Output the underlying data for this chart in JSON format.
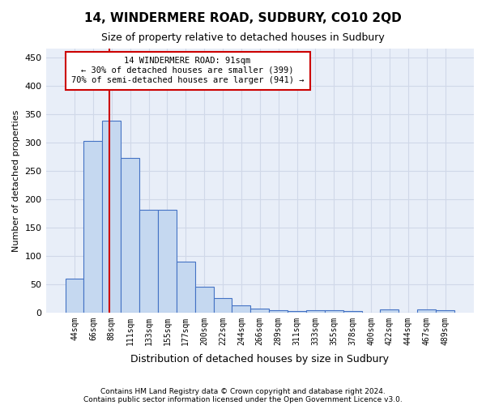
{
  "title": "14, WINDERMERE ROAD, SUDBURY, CO10 2QD",
  "subtitle": "Size of property relative to detached houses in Sudbury",
  "xlabel": "Distribution of detached houses by size in Sudbury",
  "ylabel": "Number of detached properties",
  "footer1": "Contains HM Land Registry data © Crown copyright and database right 2024.",
  "footer2": "Contains public sector information licensed under the Open Government Licence v3.0.",
  "bin_labels": [
    "44sqm",
    "66sqm",
    "88sqm",
    "111sqm",
    "133sqm",
    "155sqm",
    "177sqm",
    "200sqm",
    "222sqm",
    "244sqm",
    "266sqm",
    "289sqm",
    "311sqm",
    "333sqm",
    "355sqm",
    "378sqm",
    "400sqm",
    "422sqm",
    "444sqm",
    "467sqm",
    "489sqm"
  ],
  "bar_heights": [
    60,
    302,
    338,
    272,
    181,
    181,
    89,
    45,
    25,
    13,
    7,
    4,
    3,
    4,
    4,
    3,
    0,
    5,
    0,
    5,
    4
  ],
  "bar_color": "#c5d8f0",
  "bar_edge_color": "#4472c4",
  "grid_color": "#d0d8e8",
  "background_color": "#e8eef8",
  "property_line_x": 1.9,
  "property_size": "91sqm",
  "annotation_line1": "14 WINDERMERE ROAD: 91sqm",
  "annotation_line2": "← 30% of detached houses are smaller (399)",
  "annotation_line3": "70% of semi-detached houses are larger (941) →",
  "annotation_box_color": "#ffffff",
  "annotation_box_edge": "#cc0000",
  "red_line_color": "#cc0000",
  "ylim": [
    0,
    465
  ],
  "yticks": [
    0,
    50,
    100,
    150,
    200,
    250,
    300,
    350,
    400,
    450
  ]
}
